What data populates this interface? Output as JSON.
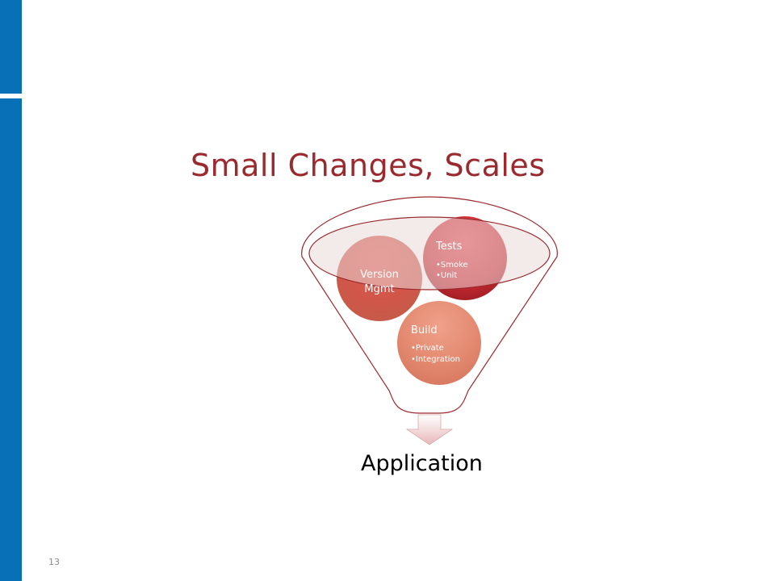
{
  "slide": {
    "title": "Small Changes, Scales",
    "page_number": "13"
  },
  "funnel": {
    "items": [
      {
        "heading": "Version Mgmt",
        "line1": "Version",
        "line2": "Mgmt",
        "bullets": []
      },
      {
        "heading": "Tests",
        "bullets": [
          "•Smoke",
          "•Unit"
        ]
      },
      {
        "heading": "Build",
        "bullets": [
          "•Private",
          "•Integration"
        ]
      }
    ],
    "result": "Application"
  },
  "colors": {
    "accent_bar": "#0770b6",
    "title": "#9a2a2d",
    "funnel_outline": "#9a2a2d",
    "ball_dark": "#c0282e",
    "ball_light": "#e08a6c"
  }
}
